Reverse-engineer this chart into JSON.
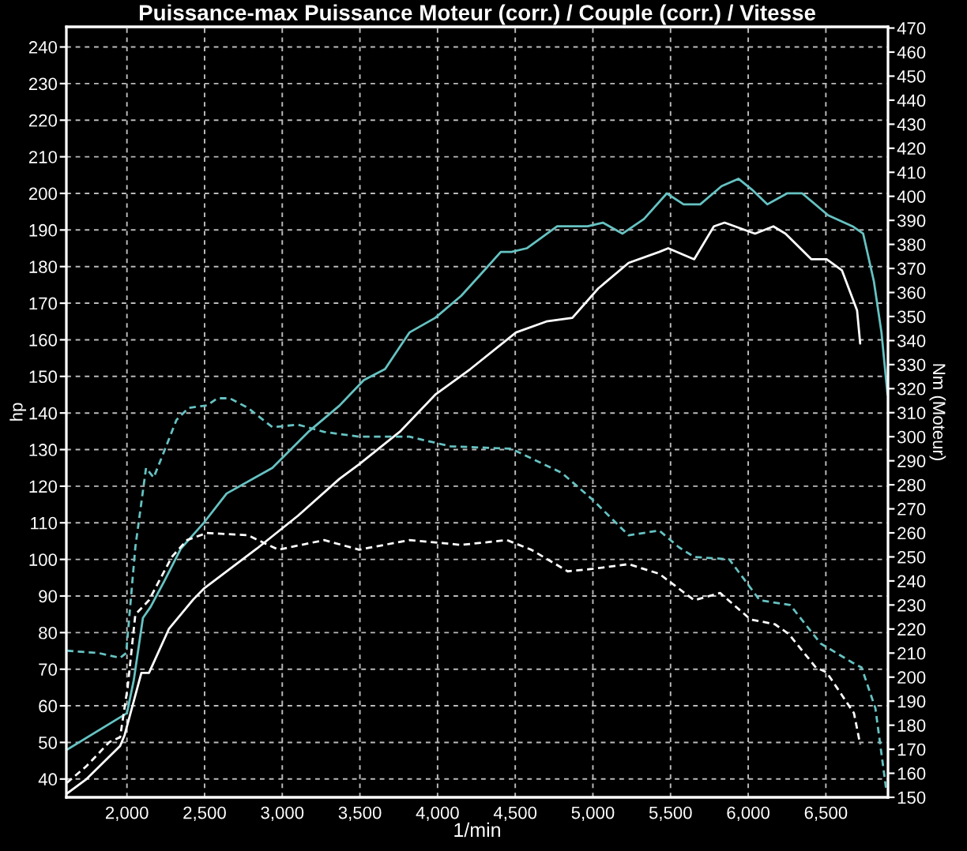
{
  "chart_data": {
    "type": "line",
    "title": "Puissance-max Puissance Moteur (corr.) / Couple (corr.) / Vitesse",
    "xlabel": "1/min",
    "ylabel": "hp",
    "y2label": "Nm (Moteur)",
    "xlim": [
      1610,
      6900
    ],
    "ylim": [
      35,
      245.5
    ],
    "y2lim": [
      150,
      470.5
    ],
    "xticks": [
      {
        "value": 2000,
        "label": "2,000"
      },
      {
        "value": 2500,
        "label": "2,500"
      },
      {
        "value": 3000,
        "label": "3,000"
      },
      {
        "value": 3500,
        "label": "3,500"
      },
      {
        "value": 4000,
        "label": "4,000"
      },
      {
        "value": 4500,
        "label": "4,500"
      },
      {
        "value": 5000,
        "label": "5,000"
      },
      {
        "value": 5500,
        "label": "5,500"
      },
      {
        "value": 6000,
        "label": "6,000"
      },
      {
        "value": 6500,
        "label": "6,500"
      }
    ],
    "yticks": [
      40,
      50,
      60,
      70,
      80,
      90,
      100,
      110,
      120,
      130,
      140,
      150,
      160,
      170,
      180,
      190,
      200,
      210,
      220,
      230,
      240
    ],
    "y2ticks": [
      150,
      160,
      170,
      180,
      190,
      200,
      210,
      220,
      230,
      240,
      250,
      260,
      270,
      280,
      290,
      300,
      310,
      320,
      330,
      340,
      350,
      360,
      370,
      380,
      390,
      400,
      410,
      420,
      430,
      440,
      450,
      460,
      470
    ],
    "grid": true,
    "legend": false,
    "marker": "none",
    "series": [
      {
        "color": "#66c2c2",
        "line_style": "solid",
        "x": [
          1613,
          2000,
          2044,
          2103,
          2152,
          2240,
          2348,
          2495,
          2642,
          2936,
          3172,
          3368,
          3525,
          3662,
          3819,
          3985,
          4152,
          4280,
          4407,
          4475,
          4574,
          4770,
          4966,
          5064,
          5191,
          5329,
          5476,
          5584,
          5691,
          5829,
          5937,
          6025,
          6123,
          6250,
          6348,
          6515,
          6672,
          6740,
          6809,
          6858,
          6897
        ],
        "values": [
          48,
          58,
          67,
          84,
          87,
          94,
          103,
          110,
          118,
          125,
          135,
          142,
          149,
          152,
          162,
          166,
          172,
          178,
          184,
          184,
          185,
          191,
          191,
          192,
          189,
          193,
          200,
          197,
          197,
          202,
          204,
          201,
          197,
          200,
          200,
          194,
          191,
          189,
          176,
          162,
          145
        ]
      },
      {
        "color": "#ffffff",
        "line_style": "solid",
        "x": [
          1613,
          1740,
          1956,
          1985,
          2093,
          2142,
          2270,
          2426,
          2495,
          2838,
          3103,
          3368,
          3495,
          3760,
          3985,
          4211,
          4505,
          4701,
          4868,
          5034,
          5230,
          5427,
          5485,
          5652,
          5779,
          5848,
          6044,
          6162,
          6240,
          6407,
          6505,
          6603,
          6701,
          6721
        ],
        "values": [
          36,
          40,
          49,
          52,
          69,
          69,
          81,
          89,
          92,
          103,
          112,
          122,
          126,
          135,
          145,
          152,
          162,
          165,
          166,
          174,
          181,
          184,
          185,
          182,
          191,
          192,
          189,
          191,
          189,
          182,
          182,
          179,
          168,
          159
        ]
      },
      {
        "color": "#66c2c2",
        "line_style": "dashed",
        "axis": "y2",
        "x": [
          1613,
          1819,
          1956,
          1995,
          2054,
          2123,
          2172,
          2240,
          2319,
          2397,
          2515,
          2583,
          2662,
          2779,
          2936,
          3103,
          3270,
          3495,
          3819,
          4083,
          4475,
          4799,
          4995,
          5230,
          5427,
          5554,
          5652,
          5878,
          6074,
          6270,
          6466,
          6672,
          6730,
          6819,
          6887
        ],
        "values": [
          211,
          210,
          208,
          210,
          254,
          287,
          283,
          294,
          307,
          312,
          313,
          316,
          316,
          312,
          304,
          305,
          302,
          300,
          300,
          296,
          295,
          285,
          274,
          259,
          261,
          254,
          250,
          249,
          232,
          230,
          214,
          206,
          204,
          187,
          154
        ]
      },
      {
        "color": "#ffffff",
        "line_style": "dashed",
        "axis": "y2",
        "x": [
          1613,
          1740,
          1887,
          1956,
          2005,
          2054,
          2142,
          2289,
          2387,
          2515,
          2779,
          2975,
          3270,
          3495,
          3819,
          4152,
          4446,
          4603,
          4838,
          4995,
          5230,
          5427,
          5652,
          5819,
          6015,
          6172,
          6260,
          6436,
          6505,
          6681,
          6721
        ],
        "values": [
          156,
          163,
          173,
          175,
          196,
          226,
          232,
          250,
          257,
          260,
          259,
          253,
          257,
          253,
          257,
          255,
          257,
          253,
          244,
          245,
          247,
          243,
          232,
          235,
          224,
          222,
          218,
          204,
          202,
          185,
          172
        ]
      }
    ]
  }
}
